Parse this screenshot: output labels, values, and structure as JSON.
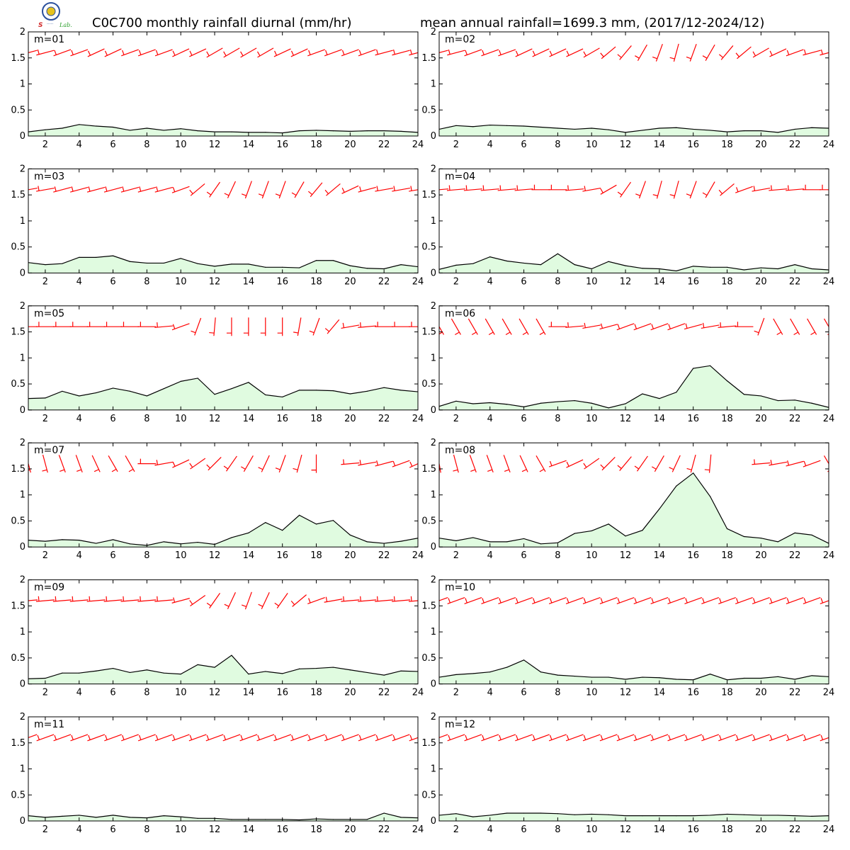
{
  "title_left": "C0C700 monthly rainfall diurnal (mm/hr)",
  "title_right": "mean annual rainfall=1699.3 mm, (2017/12-2024/12)",
  "logo": {
    "icon": "station-logo-icon",
    "text": "Lab."
  },
  "chart_data": {
    "type": "area",
    "x": [
      1,
      2,
      3,
      4,
      5,
      6,
      7,
      8,
      9,
      10,
      11,
      12,
      13,
      14,
      15,
      16,
      17,
      18,
      19,
      20,
      21,
      22,
      23,
      24
    ],
    "xlim": [
      1,
      24
    ],
    "ylim": [
      0,
      2
    ],
    "xticks": [
      2,
      4,
      6,
      8,
      10,
      12,
      14,
      16,
      18,
      20,
      22,
      24
    ],
    "xtick_labels": [
      "2",
      "4",
      "6",
      "8",
      "10",
      "12",
      "14",
      "16",
      "18",
      "20",
      "22",
      "24"
    ],
    "yticks": [
      0,
      0.5,
      1,
      1.5,
      2
    ],
    "ytick_labels": [
      "0",
      "0.5",
      "1",
      "1.5",
      "2"
    ],
    "grid": false,
    "area_color": "#e0fbe0",
    "line_color": "#000000",
    "wind_barb_color": "#ff0000",
    "wind_barb_row_y": 1.6,
    "panels": [
      {
        "label": "m=01",
        "values": [
          0.08,
          0.12,
          0.15,
          0.22,
          0.19,
          0.17,
          0.11,
          0.15,
          0.11,
          0.14,
          0.1,
          0.08,
          0.08,
          0.07,
          0.07,
          0.06,
          0.1,
          0.11,
          0.1,
          0.09,
          0.1,
          0.1,
          0.09,
          0.07
        ],
        "wind_dir": [
          255,
          255,
          250,
          250,
          245,
          245,
          250,
          250,
          250,
          245,
          245,
          240,
          240,
          240,
          240,
          245,
          245,
          250,
          250,
          250,
          250,
          255,
          255,
          255
        ]
      },
      {
        "label": "m=02",
        "values": [
          0.13,
          0.2,
          0.18,
          0.21,
          0.2,
          0.19,
          0.17,
          0.15,
          0.13,
          0.15,
          0.12,
          0.07,
          0.11,
          0.15,
          0.16,
          0.13,
          0.11,
          0.08,
          0.1,
          0.1,
          0.07,
          0.13,
          0.16,
          0.15
        ],
        "wind_dir": [
          255,
          255,
          250,
          250,
          250,
          245,
          245,
          245,
          245,
          240,
          230,
          220,
          210,
          200,
          195,
          200,
          210,
          220,
          230,
          240,
          245,
          250,
          255,
          255
        ]
      },
      {
        "label": "m=03",
        "values": [
          0.2,
          0.16,
          0.18,
          0.3,
          0.3,
          0.33,
          0.22,
          0.19,
          0.19,
          0.28,
          0.18,
          0.13,
          0.17,
          0.17,
          0.11,
          0.11,
          0.1,
          0.24,
          0.24,
          0.14,
          0.09,
          0.08,
          0.16,
          0.12
        ],
        "wind_dir": [
          260,
          260,
          255,
          255,
          255,
          255,
          255,
          255,
          255,
          250,
          230,
          215,
          205,
          200,
          200,
          200,
          210,
          220,
          230,
          245,
          255,
          260,
          260,
          260
        ]
      },
      {
        "label": "m=04",
        "values": [
          0.07,
          0.15,
          0.18,
          0.31,
          0.23,
          0.19,
          0.16,
          0.37,
          0.16,
          0.08,
          0.22,
          0.14,
          0.09,
          0.08,
          0.04,
          0.13,
          0.11,
          0.11,
          0.06,
          0.1,
          0.08,
          0.16,
          0.08,
          0.06
        ],
        "wind_dir": [
          265,
          265,
          265,
          265,
          265,
          265,
          270,
          270,
          265,
          260,
          240,
          215,
          200,
          195,
          195,
          200,
          210,
          230,
          250,
          260,
          265,
          265,
          270,
          270
        ]
      },
      {
        "label": "m=05",
        "values": [
          0.22,
          0.23,
          0.36,
          0.27,
          0.33,
          0.42,
          0.36,
          0.27,
          0.41,
          0.55,
          0.61,
          0.3,
          0.41,
          0.53,
          0.29,
          0.25,
          0.38,
          0.38,
          0.37,
          0.31,
          0.36,
          0.43,
          0.38,
          0.35
        ],
        "wind_dir": [
          270,
          270,
          270,
          270,
          270,
          270,
          270,
          270,
          265,
          250,
          200,
          185,
          180,
          180,
          180,
          180,
          190,
          200,
          220,
          260,
          265,
          270,
          270,
          270
        ]
      },
      {
        "label": "m=06",
        "values": [
          0.07,
          0.17,
          0.12,
          0.14,
          0.11,
          0.06,
          0.13,
          0.16,
          0.18,
          0.13,
          0.04,
          0.12,
          0.31,
          0.22,
          0.34,
          0.8,
          0.85,
          0.56,
          0.3,
          0.27,
          0.18,
          0.19,
          0.13,
          0.05
        ],
        "wind_dir": [
          150,
          150,
          150,
          150,
          150,
          150,
          150,
          270,
          265,
          260,
          255,
          250,
          250,
          250,
          250,
          255,
          260,
          265,
          270,
          200,
          150,
          150,
          150,
          150
        ]
      },
      {
        "label": "m=07",
        "values": [
          0.13,
          0.11,
          0.14,
          0.13,
          0.07,
          0.14,
          0.06,
          0.03,
          0.1,
          0.06,
          0.09,
          0.05,
          0.18,
          0.27,
          0.47,
          0.32,
          0.61,
          0.44,
          0.51,
          0.23,
          0.1,
          0.07,
          0.11,
          0.17
        ],
        "wind_dir": [
          165,
          165,
          160,
          160,
          155,
          150,
          150,
          270,
          260,
          245,
          235,
          225,
          215,
          210,
          205,
          200,
          195,
          180,
          null,
          265,
          260,
          255,
          250,
          245
        ]
      },
      {
        "label": "m=08",
        "values": [
          0.17,
          0.12,
          0.18,
          0.1,
          0.1,
          0.16,
          0.06,
          0.08,
          0.26,
          0.31,
          0.44,
          0.21,
          0.32,
          0.73,
          1.17,
          1.42,
          0.97,
          0.35,
          0.2,
          0.17,
          0.1,
          0.27,
          0.23,
          0.07
        ],
        "wind_dir": [
          170,
          165,
          160,
          160,
          160,
          155,
          150,
          250,
          245,
          235,
          225,
          220,
          215,
          210,
          205,
          195,
          185,
          null,
          null,
          265,
          260,
          255,
          250,
          150
        ]
      },
      {
        "label": "m=09",
        "values": [
          0.1,
          0.11,
          0.21,
          0.21,
          0.25,
          0.3,
          0.22,
          0.27,
          0.21,
          0.19,
          0.37,
          0.32,
          0.55,
          0.19,
          0.24,
          0.2,
          0.29,
          0.3,
          0.32,
          0.27,
          0.22,
          0.17,
          0.25,
          0.24
        ],
        "wind_dir": [
          265,
          265,
          265,
          265,
          265,
          265,
          265,
          265,
          265,
          255,
          235,
          215,
          205,
          200,
          205,
          215,
          230,
          250,
          260,
          265,
          265,
          265,
          265,
          265
        ]
      },
      {
        "label": "m=10",
        "values": [
          0.13,
          0.18,
          0.2,
          0.23,
          0.32,
          0.46,
          0.23,
          0.17,
          0.15,
          0.13,
          0.13,
          0.09,
          0.13,
          0.12,
          0.09,
          0.08,
          0.19,
          0.08,
          0.11,
          0.11,
          0.14,
          0.09,
          0.16,
          0.14
        ],
        "wind_dir": [
          250,
          250,
          250,
          250,
          250,
          250,
          250,
          250,
          250,
          250,
          250,
          250,
          250,
          250,
          250,
          250,
          250,
          250,
          250,
          250,
          250,
          250,
          250,
          250
        ]
      },
      {
        "label": "m=11",
        "values": [
          0.1,
          0.07,
          0.09,
          0.11,
          0.07,
          0.11,
          0.07,
          0.06,
          0.1,
          0.08,
          0.05,
          0.05,
          0.03,
          0.03,
          0.03,
          0.03,
          0.02,
          0.04,
          0.03,
          0.03,
          0.03,
          0.15,
          0.07,
          0.06
        ],
        "wind_dir": [
          250,
          250,
          250,
          250,
          250,
          250,
          250,
          250,
          250,
          250,
          250,
          250,
          250,
          250,
          250,
          250,
          250,
          250,
          250,
          250,
          250,
          250,
          250,
          250
        ]
      },
      {
        "label": "m=12",
        "values": [
          0.11,
          0.14,
          0.08,
          0.11,
          0.15,
          0.15,
          0.15,
          0.14,
          0.12,
          0.13,
          0.12,
          0.1,
          0.1,
          0.1,
          0.1,
          0.1,
          0.11,
          0.13,
          0.12,
          0.11,
          0.11,
          0.1,
          0.09,
          0.1
        ],
        "wind_dir": [
          250,
          250,
          250,
          250,
          250,
          250,
          250,
          250,
          250,
          250,
          250,
          250,
          250,
          250,
          250,
          250,
          250,
          250,
          250,
          250,
          250,
          250,
          250,
          250
        ]
      }
    ]
  }
}
